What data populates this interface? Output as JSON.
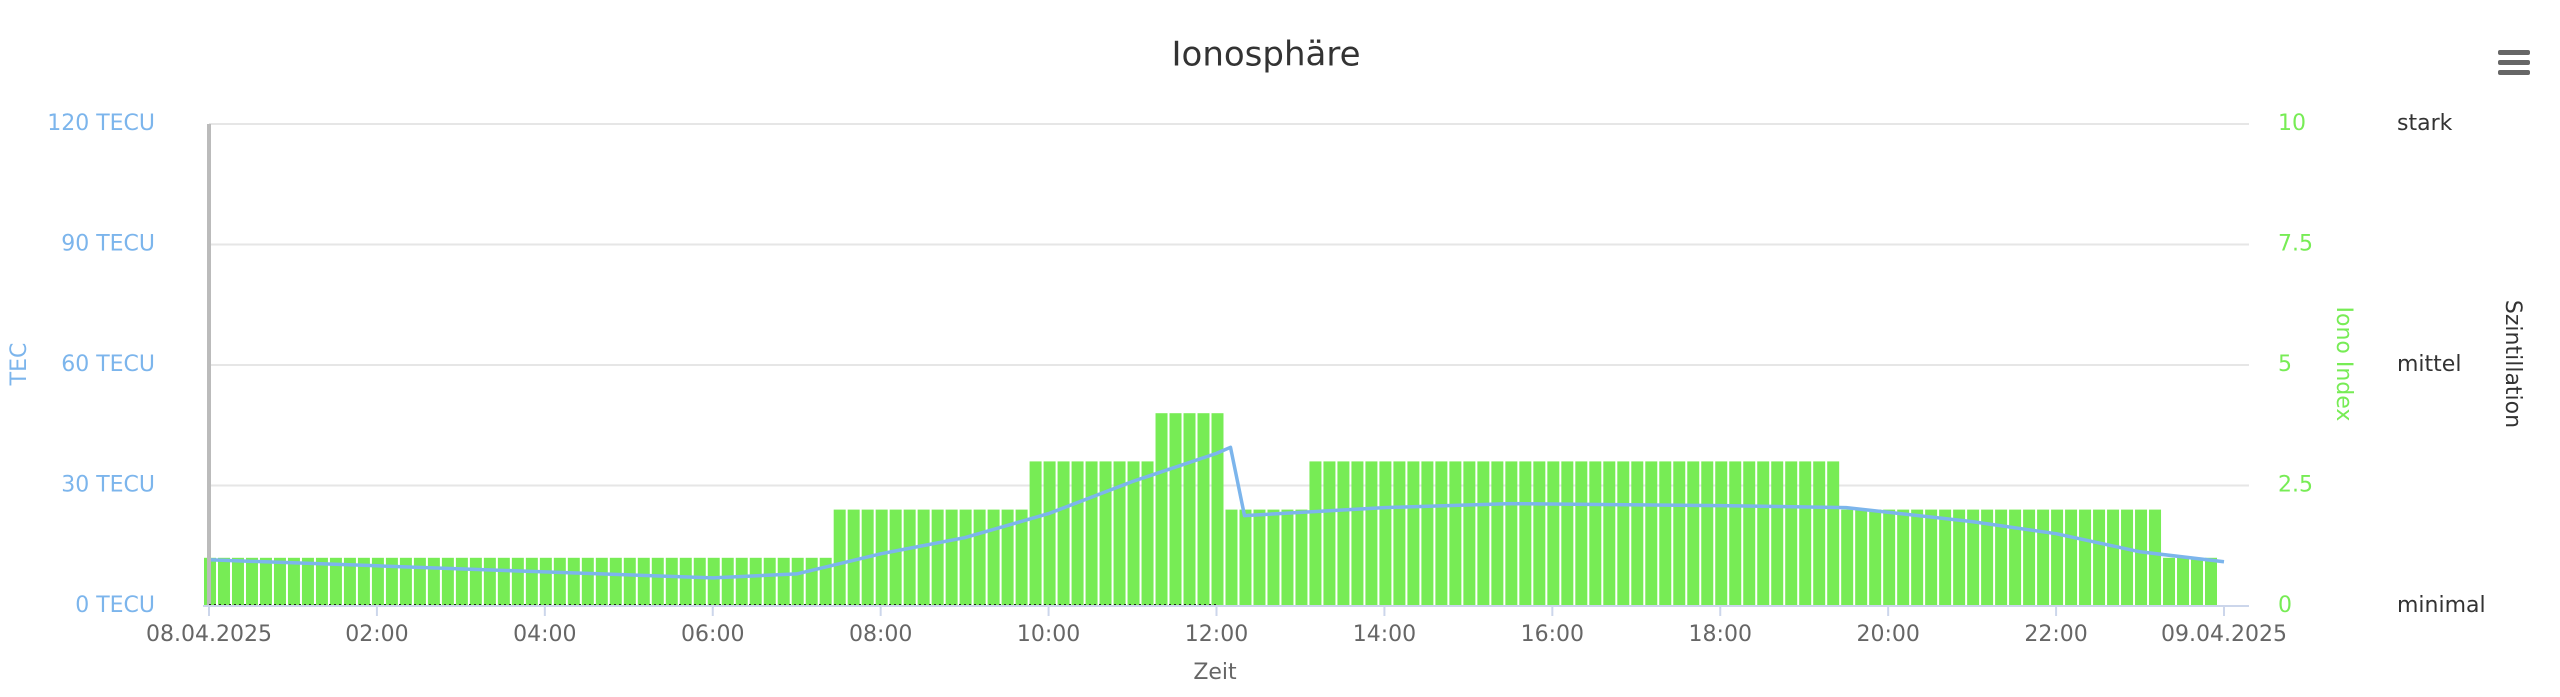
{
  "chart_data": {
    "type": "combo",
    "title": "Ionosphäre",
    "x_title": "Zeit",
    "xlim": [
      0,
      1440
    ],
    "xticks": [
      {
        "value": 0,
        "label": "08.04.2025"
      },
      {
        "value": 120,
        "label": "02:00"
      },
      {
        "value": 240,
        "label": "04:00"
      },
      {
        "value": 360,
        "label": "06:00"
      },
      {
        "value": 480,
        "label": "08:00"
      },
      {
        "value": 600,
        "label": "10:00"
      },
      {
        "value": 720,
        "label": "12:00"
      },
      {
        "value": 840,
        "label": "14:00"
      },
      {
        "value": 960,
        "label": "16:00"
      },
      {
        "value": 1080,
        "label": "18:00"
      },
      {
        "value": 1200,
        "label": "20:00"
      },
      {
        "value": 1320,
        "label": "22:00"
      },
      {
        "value": 1440,
        "label": "09.04.2025"
      }
    ],
    "y_title": "TEC",
    "ylim": [
      0,
      120
    ],
    "yticks": [
      {
        "value": 0,
        "label": "0 TECU"
      },
      {
        "value": 30,
        "label": "30 TECU"
      },
      {
        "value": 60,
        "label": "60 TECU"
      },
      {
        "value": 90,
        "label": "90 TECU"
      },
      {
        "value": 120,
        "label": "120 TECU"
      }
    ],
    "y2_title": "Iono Index",
    "y2lim": [
      0,
      10
    ],
    "y2ticks": [
      0,
      2.5,
      5,
      7.5,
      10
    ],
    "y3_title": "Szintillation",
    "y3ticks": [
      {
        "value": 0,
        "label": "minimal"
      },
      {
        "value": 5,
        "label": "mittel"
      },
      {
        "value": 10,
        "label": "stark"
      }
    ],
    "grid": true,
    "series": [
      {
        "type": "bar",
        "axis": "y2",
        "color": "#77ec55",
        "x": [
          0,
          10,
          20,
          30,
          40,
          50,
          60,
          70,
          80,
          90,
          100,
          110,
          120,
          130,
          140,
          150,
          160,
          170,
          180,
          190,
          200,
          210,
          220,
          230,
          240,
          250,
          260,
          270,
          280,
          290,
          300,
          310,
          320,
          330,
          340,
          350,
          360,
          370,
          380,
          390,
          400,
          410,
          420,
          430,
          440,
          450,
          460,
          470,
          480,
          490,
          500,
          510,
          520,
          530,
          540,
          550,
          560,
          570,
          580,
          590,
          600,
          610,
          620,
          630,
          640,
          650,
          660,
          670,
          680,
          690,
          700,
          710,
          720,
          730,
          740,
          750,
          760,
          770,
          780,
          790,
          800,
          810,
          820,
          830,
          840,
          850,
          860,
          870,
          880,
          890,
          900,
          910,
          920,
          930,
          940,
          950,
          960,
          970,
          980,
          990,
          1000,
          1010,
          1020,
          1030,
          1040,
          1050,
          1060,
          1070,
          1080,
          1090,
          1100,
          1110,
          1120,
          1130,
          1140,
          1150,
          1160,
          1170,
          1180,
          1190,
          1200,
          1210,
          1220,
          1230,
          1240,
          1250,
          1260,
          1270,
          1280,
          1290,
          1300,
          1310,
          1320,
          1330,
          1340,
          1350,
          1360,
          1370,
          1380,
          1390,
          1400,
          1410,
          1420,
          1430
        ],
        "values": [
          1,
          1,
          1,
          1,
          1,
          1,
          1,
          1,
          1,
          1,
          1,
          1,
          1,
          1,
          1,
          1,
          1,
          1,
          1,
          1,
          1,
          1,
          1,
          1,
          1,
          1,
          1,
          1,
          1,
          1,
          1,
          1,
          1,
          1,
          1,
          1,
          1,
          1,
          1,
          1,
          1,
          1,
          1,
          1,
          1,
          2,
          2,
          2,
          2,
          2,
          2,
          2,
          2,
          2,
          2,
          2,
          2,
          2,
          2,
          3,
          3,
          3,
          3,
          3,
          3,
          3,
          3,
          3,
          4,
          4,
          4,
          4,
          4,
          2,
          2,
          2,
          2,
          2,
          2,
          3,
          3,
          3,
          3,
          3,
          3,
          3,
          3,
          3,
          3,
          3,
          3,
          3,
          3,
          3,
          3,
          3,
          3,
          3,
          3,
          3,
          3,
          3,
          3,
          3,
          3,
          3,
          3,
          3,
          3,
          3,
          3,
          3,
          3,
          3,
          3,
          3,
          3,
          2,
          2,
          2,
          2,
          2,
          2,
          2,
          2,
          2,
          2,
          2,
          2,
          2,
          2,
          2,
          2,
          2,
          2,
          2,
          2,
          2,
          2,
          2,
          1,
          1,
          1,
          1
        ]
      },
      {
        "type": "line",
        "axis": "y",
        "color": "#7cb5ec",
        "x": [
          0,
          120,
          240,
          360,
          420,
          480,
          540,
          600,
          660,
          720,
          730,
          740,
          840,
          930,
          1080,
          1170,
          1260,
          1320,
          1380,
          1440
        ],
        "values": [
          11.5,
          10,
          8.5,
          7,
          8,
          13,
          17,
          23,
          31,
          38,
          39.5,
          22.5,
          24.5,
          25.5,
          25,
          24.5,
          21,
          18,
          13.5,
          11
        ]
      }
    ]
  }
}
